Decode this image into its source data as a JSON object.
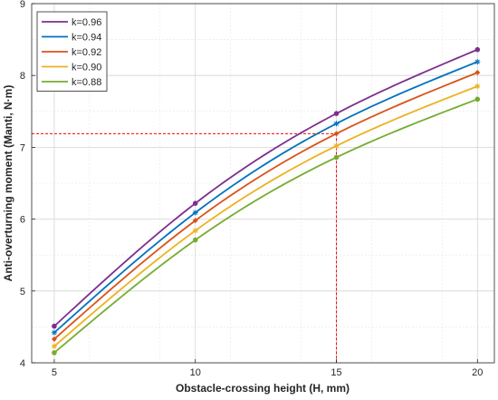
{
  "chart_data": {
    "type": "line",
    "xlabel": "Obstacle-crossing height (H, mm)",
    "ylabel": "Anti-overturning moment (Manti, N·m)",
    "xlim": [
      4.2,
      20.6
    ],
    "ylim": [
      4,
      9
    ],
    "xticks": [
      5,
      10,
      15,
      20
    ],
    "yticks": [
      4,
      5,
      6,
      7,
      8,
      9
    ],
    "grid": true,
    "legend_position": "top-left",
    "series": [
      {
        "name": "k=0.96",
        "color": "#7e2f8e",
        "marker": "circle",
        "x": [
          5,
          10,
          15,
          20
        ],
        "y": [
          4.51,
          6.22,
          7.47,
          8.36
        ]
      },
      {
        "name": "k=0.94",
        "color": "#0072bd",
        "marker": "star",
        "x": [
          5,
          10,
          15,
          20
        ],
        "y": [
          4.42,
          6.09,
          7.33,
          8.19
        ]
      },
      {
        "name": "k=0.92",
        "color": "#d95319",
        "marker": "diamond",
        "x": [
          5,
          10,
          15,
          20
        ],
        "y": [
          4.33,
          5.98,
          7.19,
          8.04
        ]
      },
      {
        "name": "k=0.90",
        "color": "#edb120",
        "marker": "star",
        "x": [
          5,
          10,
          15,
          20
        ],
        "y": [
          4.23,
          5.84,
          7.02,
          7.85
        ]
      },
      {
        "name": "k=0.88",
        "color": "#77ac30",
        "marker": "circle",
        "x": [
          5,
          10,
          15,
          20
        ],
        "y": [
          4.14,
          5.71,
          6.86,
          7.67
        ]
      }
    ],
    "reference_lines": {
      "color": "#ff0000",
      "x": 15,
      "y": 7.19
    }
  }
}
